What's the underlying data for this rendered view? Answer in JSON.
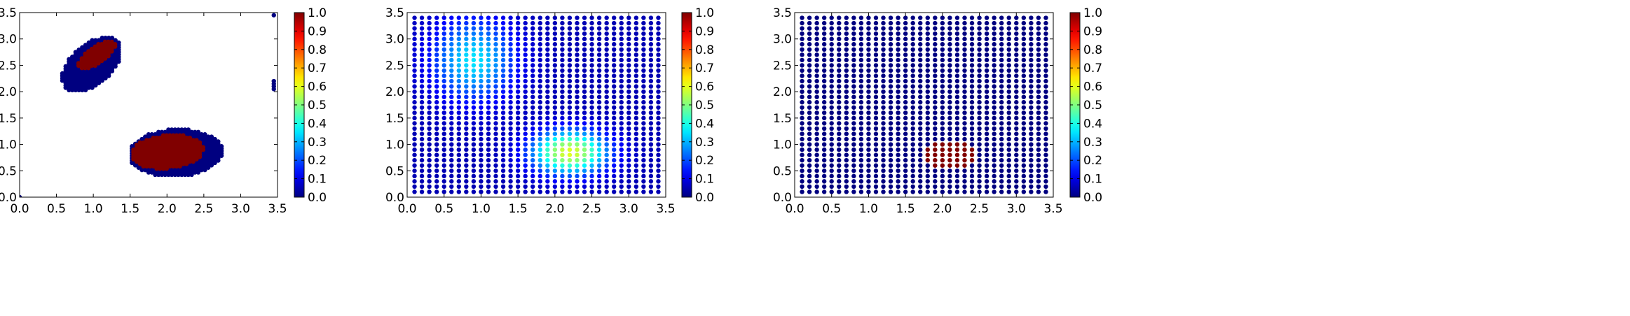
{
  "chart_data": [
    {
      "type": "scatter",
      "title": "",
      "xlabel": "",
      "ylabel": "",
      "xlim": [
        0.0,
        3.5
      ],
      "ylim": [
        0.0,
        3.5
      ],
      "xticks": [
        "0.0",
        "0.5",
        "1.0",
        "1.5",
        "2.0",
        "2.5",
        "3.0",
        "3.5"
      ],
      "yticks": [
        "0.0",
        "0.5",
        "1.0",
        "1.5",
        "2.0",
        "2.5",
        "3.0",
        "3.5"
      ],
      "colorbar": {
        "range": [
          0.0,
          1.0
        ],
        "colormap": "jet",
        "ticks": [
          "0.0",
          "0.1",
          "0.2",
          "0.3",
          "0.4",
          "0.5",
          "0.6",
          "0.7",
          "0.8",
          "0.9",
          "1.0"
        ]
      },
      "grid": false,
      "point_groups": [
        {
          "name": "cluster-upper-left",
          "shape": "ellipse",
          "center": [
            0.98,
            2.52
          ],
          "radii": [
            0.58,
            0.32
          ],
          "angle_deg": 58,
          "value": 0.0
        },
        {
          "name": "cluster-upper-left-core",
          "shape": "ellipse",
          "center": [
            1.05,
            2.7
          ],
          "radii": [
            0.34,
            0.15
          ],
          "angle_deg": 48,
          "value": 1.0
        },
        {
          "name": "cluster-lower-right",
          "shape": "ellipse",
          "center": [
            2.12,
            0.84
          ],
          "radii": [
            0.64,
            0.45
          ],
          "angle_deg": 5,
          "value": 0.0
        },
        {
          "name": "cluster-lower-right-core",
          "shape": "ellipse",
          "center": [
            2.0,
            0.86
          ],
          "radii": [
            0.5,
            0.32
          ],
          "angle_deg": 10,
          "value": 1.0
        },
        {
          "name": "outliers-right-edge",
          "shape": "points",
          "x": [
            3.45,
            3.45,
            3.45,
            3.45,
            3.45
          ],
          "y": [
            3.45,
            2.2,
            2.15,
            2.1,
            2.05
          ],
          "value": 0.0
        }
      ]
    },
    {
      "type": "scatter",
      "title": "",
      "xlabel": "",
      "ylabel": "",
      "xlim": [
        0.0,
        3.5
      ],
      "ylim": [
        0.0,
        3.5
      ],
      "xticks": [
        "0.0",
        "0.5",
        "1.0",
        "1.5",
        "2.0",
        "2.5",
        "3.0",
        "3.5"
      ],
      "yticks": [
        "0.0",
        "0.5",
        "1.0",
        "1.5",
        "2.0",
        "2.5",
        "3.0",
        "3.5"
      ],
      "colorbar": {
        "range": [
          0.0,
          1.0
        ],
        "colormap": "jet",
        "ticks": [
          "0.0",
          "0.1",
          "0.2",
          "0.3",
          "0.4",
          "0.5",
          "0.6",
          "0.7",
          "0.8",
          "0.9",
          "1.0"
        ]
      },
      "grid": false,
      "regular_grid": {
        "x_start": 0.1,
        "x_end": 3.4,
        "y_start": 0.1,
        "y_end": 3.4,
        "step": 0.1
      },
      "value_field": [
        {
          "center": [
            0.9,
            2.6
          ],
          "sigma": [
            0.55,
            0.75
          ],
          "peak": 0.3
        },
        {
          "center": [
            2.2,
            0.85
          ],
          "sigma": [
            0.5,
            0.4
          ],
          "peak": 0.55
        }
      ],
      "value_floor": 0.05
    },
    {
      "type": "scatter",
      "title": "",
      "xlabel": "",
      "ylabel": "",
      "xlim": [
        0.0,
        3.5
      ],
      "ylim": [
        0.0,
        3.5
      ],
      "xticks": [
        "0.0",
        "0.5",
        "1.0",
        "1.5",
        "2.0",
        "2.5",
        "3.0",
        "3.5"
      ],
      "yticks": [
        "0.0",
        "0.5",
        "1.0",
        "1.5",
        "2.0",
        "2.5",
        "3.0",
        "3.5"
      ],
      "colorbar": {
        "range": [
          0.0,
          1.0
        ],
        "colormap": "jet",
        "ticks": [
          "0.0",
          "0.1",
          "0.2",
          "0.3",
          "0.4",
          "0.5",
          "0.6",
          "0.7",
          "0.8",
          "0.9",
          "1.0"
        ]
      },
      "grid": false,
      "regular_grid": {
        "x_start": 0.1,
        "x_end": 3.4,
        "y_start": 0.1,
        "y_end": 3.4,
        "step": 0.1
      },
      "default_value": 0.0,
      "highlight": {
        "shape": "ellipse",
        "center": [
          2.1,
          0.8
        ],
        "radii": [
          0.33,
          0.28
        ],
        "value": 1.0
      }
    }
  ]
}
